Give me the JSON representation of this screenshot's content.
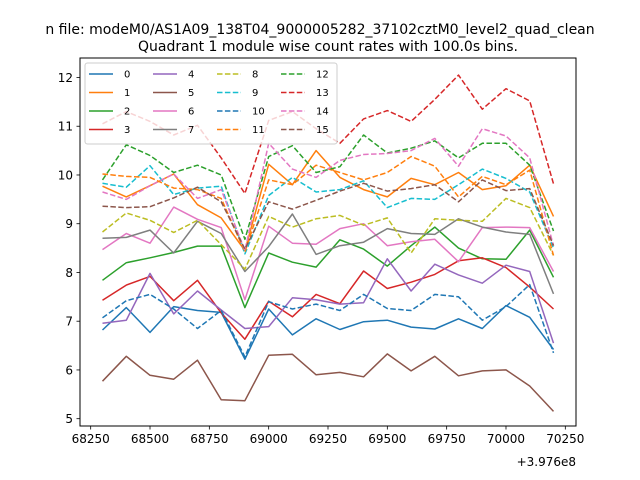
{
  "chart_data": {
    "type": "line",
    "title": "Quadrant 1 module wise count rates with 100.0s bins.",
    "suptitle": "n file: modeM0/AS1A09_138T04_9000005282_37102cztM0_level2_quad_clean",
    "xlabel": "",
    "ylabel": "",
    "x_offset_label": "+3.976e8",
    "x": [
      68300,
      68400,
      68500,
      68600,
      68700,
      68800,
      68900,
      69000,
      69100,
      69200,
      69300,
      69400,
      69500,
      69600,
      69700,
      69800,
      69900,
      70000,
      70100,
      70200
    ],
    "xlim": [
      68205,
      70295
    ],
    "ylim": [
      4.85,
      12.4
    ],
    "xticks": [
      68250,
      68500,
      68750,
      69000,
      69250,
      69500,
      69750,
      70000,
      70250
    ],
    "xtick_labels": [
      "68250",
      "68500",
      "68750",
      "69000",
      "69250",
      "69500",
      "69750",
      "70000",
      "70250"
    ],
    "yticks": [
      5,
      6,
      7,
      8,
      9,
      10,
      11,
      12
    ],
    "ytick_labels": [
      "5",
      "6",
      "7",
      "8",
      "9",
      "10",
      "11",
      "12"
    ],
    "legend_position": "upper-left",
    "legend_columns": 4,
    "series": [
      {
        "name": "0",
        "color": "#1f77b4",
        "dash": "solid",
        "values": [
          6.82,
          7.28,
          6.77,
          7.3,
          7.22,
          7.18,
          6.22,
          7.25,
          6.72,
          7.05,
          6.83,
          6.99,
          7.02,
          6.88,
          6.84,
          7.05,
          6.85,
          7.32,
          7.08,
          6.42
        ]
      },
      {
        "name": "1",
        "color": "#ff7f0e",
        "dash": "solid",
        "values": [
          9.77,
          9.55,
          9.78,
          10.02,
          9.39,
          9.12,
          8.45,
          10.22,
          9.8,
          10.5,
          9.95,
          9.7,
          9.55,
          9.93,
          9.8,
          10.05,
          9.7,
          9.78,
          10.2,
          9.15
        ]
      },
      {
        "name": "2",
        "color": "#2ca02c",
        "dash": "solid",
        "values": [
          7.84,
          8.2,
          8.3,
          8.41,
          8.54,
          8.54,
          7.28,
          8.4,
          8.21,
          8.11,
          8.67,
          8.48,
          8.13,
          8.55,
          8.93,
          8.5,
          8.28,
          8.27,
          8.87,
          7.9
        ]
      },
      {
        "name": "3",
        "color": "#d62728",
        "dash": "solid",
        "values": [
          7.43,
          7.74,
          7.92,
          7.42,
          7.84,
          7.17,
          6.63,
          7.41,
          7.09,
          7.55,
          7.36,
          8.03,
          7.67,
          7.8,
          7.96,
          8.24,
          8.3,
          8.1,
          7.7,
          7.25
        ]
      },
      {
        "name": "4",
        "color": "#9467bd",
        "dash": "solid",
        "values": [
          6.96,
          7.02,
          7.98,
          7.15,
          7.62,
          7.23,
          6.85,
          6.89,
          7.48,
          7.44,
          7.35,
          7.38,
          8.28,
          7.62,
          8.17,
          7.95,
          7.78,
          8.15,
          8.02,
          6.55
        ]
      },
      {
        "name": "5",
        "color": "#8c564b",
        "dash": "solid",
        "values": [
          5.77,
          6.28,
          5.89,
          5.81,
          6.2,
          5.39,
          5.37,
          6.3,
          6.32,
          5.9,
          5.95,
          5.86,
          6.33,
          5.98,
          6.28,
          5.88,
          5.98,
          6.0,
          5.67,
          5.15
        ]
      },
      {
        "name": "6",
        "color": "#e377c2",
        "dash": "solid",
        "values": [
          8.47,
          8.8,
          8.6,
          9.34,
          9.09,
          8.92,
          7.44,
          8.95,
          8.6,
          8.58,
          8.9,
          9.0,
          8.55,
          8.63,
          8.68,
          8.22,
          8.92,
          8.93,
          8.92,
          8.02
        ]
      },
      {
        "name": "7",
        "color": "#7f7f7f",
        "dash": "solid",
        "values": [
          8.7,
          8.72,
          8.87,
          8.4,
          9.05,
          8.8,
          8.02,
          8.53,
          9.2,
          8.37,
          8.55,
          8.62,
          8.9,
          8.8,
          8.78,
          9.1,
          8.93,
          8.83,
          8.78,
          7.56
        ]
      },
      {
        "name": "8",
        "color": "#bcbd22",
        "dash": "dashed",
        "values": [
          8.83,
          9.22,
          9.07,
          8.82,
          9.07,
          8.57,
          8.07,
          9.15,
          8.93,
          9.1,
          9.17,
          8.97,
          9.12,
          8.4,
          9.1,
          9.07,
          9.05,
          9.52,
          9.33,
          8.35
        ]
      },
      {
        "name": "9",
        "color": "#17becf",
        "dash": "dashed",
        "values": [
          9.83,
          9.75,
          10.19,
          9.6,
          9.73,
          9.77,
          8.38,
          9.58,
          9.95,
          9.65,
          9.7,
          9.88,
          9.33,
          9.52,
          9.5,
          9.8,
          10.12,
          9.93,
          9.65,
          8.5
        ]
      },
      {
        "name": "10",
        "color": "#1f77b4",
        "dash": "dashed",
        "values": [
          7.07,
          7.42,
          7.55,
          7.25,
          6.85,
          7.22,
          6.27,
          7.4,
          7.25,
          7.35,
          7.22,
          7.55,
          7.26,
          7.22,
          7.55,
          7.5,
          7.02,
          7.3,
          7.75,
          6.35
        ]
      },
      {
        "name": "11",
        "color": "#ff7f0e",
        "dash": "dashed",
        "values": [
          10.02,
          9.97,
          9.95,
          9.73,
          9.7,
          9.52,
          8.42,
          9.9,
          9.8,
          10.2,
          10.05,
          9.9,
          10.05,
          10.38,
          10.18,
          9.55,
          9.97,
          9.8,
          10.1,
          8.35
        ]
      },
      {
        "name": "12",
        "color": "#2ca02c",
        "dash": "dashed",
        "values": [
          9.9,
          10.62,
          10.4,
          10.05,
          10.2,
          10.0,
          8.68,
          10.38,
          10.6,
          10.05,
          10.17,
          10.82,
          10.45,
          10.55,
          10.7,
          10.35,
          10.65,
          10.65,
          10.2,
          8.85
        ]
      },
      {
        "name": "13",
        "color": "#d62728",
        "dash": "dashed",
        "values": [
          11.05,
          11.3,
          11.1,
          10.82,
          11.02,
          10.35,
          9.62,
          11.12,
          11.3,
          10.95,
          10.65,
          11.15,
          11.32,
          11.1,
          11.55,
          12.05,
          11.35,
          11.77,
          11.52,
          9.82
        ]
      },
      {
        "name": "14",
        "color": "#e377c2",
        "dash": "dashed",
        "values": [
          9.65,
          9.5,
          9.78,
          10.02,
          9.52,
          9.7,
          8.45,
          10.65,
          10.12,
          9.95,
          10.3,
          10.42,
          10.44,
          10.5,
          10.75,
          10.18,
          10.95,
          10.8,
          10.35,
          8.55
        ]
      },
      {
        "name": "15",
        "color": "#8c564b",
        "dash": "dashed",
        "values": [
          9.36,
          9.33,
          9.35,
          9.53,
          9.75,
          9.45,
          8.48,
          9.45,
          9.3,
          9.48,
          9.67,
          9.83,
          9.67,
          9.72,
          9.8,
          9.45,
          9.9,
          9.68,
          9.72,
          8.55
        ]
      }
    ]
  }
}
